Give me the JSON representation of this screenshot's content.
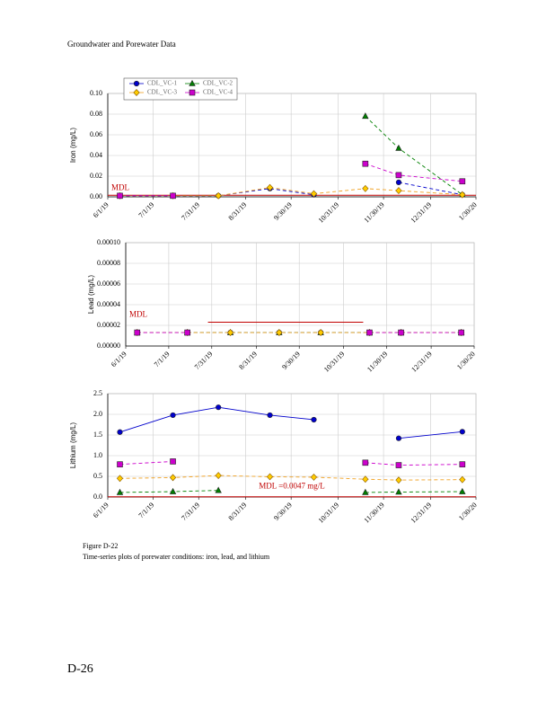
{
  "header": "Groundwater and Porewater Data",
  "caption": {
    "figure": "Figure D-22",
    "text": "Time-series plots of porewater conditions: iron, lead, and lithium"
  },
  "page_number": "D-26",
  "chart_data": [
    {
      "type": "line",
      "y_label": "Iron (mg/L)",
      "grid": true,
      "legend": "upper left",
      "xlim": [
        "2019-06-01",
        "2020-01-30"
      ],
      "xticks": [
        {
          "value": "2019-06-01",
          "label": "6/1/19"
        },
        {
          "value": "2019-07-01",
          "label": "7/1/19"
        },
        {
          "value": "2019-07-31",
          "label": "7/31/19"
        },
        {
          "value": "2019-08-31",
          "label": "8/31/19"
        },
        {
          "value": "2019-09-30",
          "label": "9/30/19"
        },
        {
          "value": "2019-10-31",
          "label": "10/31/19"
        },
        {
          "value": "2019-11-30",
          "label": "11/30/19"
        },
        {
          "value": "2019-12-31",
          "label": "12/31/19"
        },
        {
          "value": "2020-01-30",
          "label": "1/30/20"
        }
      ],
      "ylim": [
        0,
        0.1
      ],
      "yticks": [
        {
          "value": 0,
          "label": "0.00"
        },
        {
          "value": 0.02,
          "label": "0.02"
        },
        {
          "value": 0.04,
          "label": "0.04"
        },
        {
          "value": 0.06,
          "label": "0.06"
        },
        {
          "value": 0.08,
          "label": "0.08"
        },
        {
          "value": 0.1,
          "label": "0.10"
        }
      ],
      "x": [
        "2019-06-09",
        "2019-07-14",
        "2019-08-13",
        "2019-09-16",
        "2019-10-15",
        "2019-11-18",
        "2019-12-10",
        "2020-01-21"
      ],
      "mdl": {
        "value": 0.0015,
        "label": "MDL"
      },
      "series": [
        {
          "name": "CDL_VC-1",
          "color": "#0000cc",
          "marker": "circle",
          "values": [
            0.001,
            0.001,
            0.001,
            0.008,
            0.002,
            null,
            0.014,
            0.002
          ]
        },
        {
          "name": "CDL_VC-2",
          "color": "#008000",
          "marker": "triangle",
          "values": [
            null,
            null,
            null,
            null,
            null,
            0.078,
            0.047,
            0.002
          ]
        },
        {
          "name": "CDL_VC-3",
          "color": "#f0a020",
          "marker": "diamond",
          "values": [
            0.001,
            0.001,
            0.001,
            0.009,
            0.003,
            0.008,
            0.006,
            0.002
          ]
        },
        {
          "name": "CDL_VC-4",
          "color": "#cc00cc",
          "marker": "square",
          "values": [
            0.001,
            0.001,
            null,
            null,
            null,
            0.032,
            0.021,
            0.015
          ]
        }
      ]
    },
    {
      "type": "line",
      "y_label": "Lead (mg/L)",
      "grid": true,
      "xlim": [
        "2019-06-01",
        "2020-01-30"
      ],
      "xticks": [
        {
          "value": "2019-06-01",
          "label": "6/1/19"
        },
        {
          "value": "2019-07-01",
          "label": "7/1/19"
        },
        {
          "value": "2019-07-31",
          "label": "7/31/19"
        },
        {
          "value": "2019-08-31",
          "label": "8/31/19"
        },
        {
          "value": "2019-09-30",
          "label": "9/30/19"
        },
        {
          "value": "2019-10-31",
          "label": "10/31/19"
        },
        {
          "value": "2019-11-30",
          "label": "11/30/19"
        },
        {
          "value": "2019-12-31",
          "label": "12/31/19"
        },
        {
          "value": "2020-01-30",
          "label": "1/30/20"
        }
      ],
      "ylim": [
        0,
        0.0001
      ],
      "yticks": [
        {
          "value": 0,
          "label": "0.00000"
        },
        {
          "value": 2e-05,
          "label": "0.00002"
        },
        {
          "value": 4e-05,
          "label": "0.00004"
        },
        {
          "value": 6e-05,
          "label": "0.00006"
        },
        {
          "value": 8e-05,
          "label": "0.00008"
        },
        {
          "value": 0.0001,
          "label": "0.00010"
        }
      ],
      "x": [
        "2019-06-09",
        "2019-07-14",
        "2019-08-13",
        "2019-09-16",
        "2019-10-15",
        "2019-11-18",
        "2019-12-10",
        "2020-01-21"
      ],
      "mdl": {
        "value": 2.3e-05,
        "label": "MDL"
      },
      "series": [
        {
          "name": "CDL_VC-1",
          "color": "#0000cc",
          "marker": "circle",
          "values": [
            1.3e-05,
            1.3e-05,
            1.3e-05,
            1.3e-05,
            1.3e-05,
            1.3e-05,
            1.3e-05,
            1.3e-05
          ]
        },
        {
          "name": "CDL_VC-2",
          "color": "#008000",
          "marker": "triangle",
          "values": [
            1.3e-05,
            1.3e-05,
            1.3e-05,
            1.3e-05,
            1.3e-05,
            1.3e-05,
            1.3e-05,
            1.3e-05
          ]
        },
        {
          "name": "CDL_VC-3",
          "color": "#f0a020",
          "marker": "diamond",
          "values": [
            1.3e-05,
            1.3e-05,
            1.3e-05,
            1.3e-05,
            1.3e-05,
            1.3e-05,
            1.3e-05,
            1.3e-05
          ]
        },
        {
          "name": "CDL_VC-4",
          "color": "#cc00cc",
          "marker": "square",
          "values": [
            1.3e-05,
            1.3e-05,
            null,
            null,
            null,
            1.3e-05,
            1.3e-05,
            1.3e-05
          ]
        }
      ]
    },
    {
      "type": "line",
      "y_label": "Lithium (mg/L)",
      "grid": true,
      "xlim": [
        "2019-06-01",
        "2020-01-30"
      ],
      "xticks": [
        {
          "value": "2019-06-01",
          "label": "6/1/19"
        },
        {
          "value": "2019-07-01",
          "label": "7/1/19"
        },
        {
          "value": "2019-07-31",
          "label": "7/31/19"
        },
        {
          "value": "2019-08-31",
          "label": "8/31/19"
        },
        {
          "value": "2019-09-30",
          "label": "9/30/19"
        },
        {
          "value": "2019-10-31",
          "label": "10/31/19"
        },
        {
          "value": "2019-11-30",
          "label": "11/30/19"
        },
        {
          "value": "2019-12-31",
          "label": "12/31/19"
        },
        {
          "value": "2020-01-30",
          "label": "1/30/20"
        }
      ],
      "ylim": [
        0,
        2.5
      ],
      "yticks": [
        {
          "value": 0,
          "label": "0.0"
        },
        {
          "value": 0.5,
          "label": "0.5"
        },
        {
          "value": 1,
          "label": "1.0"
        },
        {
          "value": 1.5,
          "label": "1.5"
        },
        {
          "value": 2,
          "label": "2.0"
        },
        {
          "value": 2.5,
          "label": "2.5"
        }
      ],
      "x": [
        "2019-06-09",
        "2019-07-14",
        "2019-08-13",
        "2019-09-16",
        "2019-10-15",
        "2019-11-18",
        "2019-12-10",
        "2020-01-21"
      ],
      "mdl": {
        "value": 0.0047,
        "label": "MDL =0.0047 mg/L"
      },
      "series": [
        {
          "name": "CDL_VC-1",
          "color": "#0000cc",
          "marker": "circle",
          "values": [
            1.57,
            1.98,
            2.17,
            1.98,
            1.87,
            null,
            1.42,
            1.58
          ]
        },
        {
          "name": "CDL_VC-2",
          "color": "#008000",
          "marker": "triangle",
          "values": [
            0.11,
            0.13,
            0.16,
            null,
            null,
            0.11,
            0.12,
            0.13
          ]
        },
        {
          "name": "CDL_VC-3",
          "color": "#f0a020",
          "marker": "diamond",
          "values": [
            0.45,
            0.47,
            0.52,
            0.49,
            0.48,
            0.43,
            0.41,
            0.42
          ]
        },
        {
          "name": "CDL_VC-4",
          "color": "#cc00cc",
          "marker": "square",
          "values": [
            0.79,
            0.86,
            null,
            null,
            null,
            0.83,
            0.77,
            0.79
          ]
        }
      ]
    }
  ]
}
